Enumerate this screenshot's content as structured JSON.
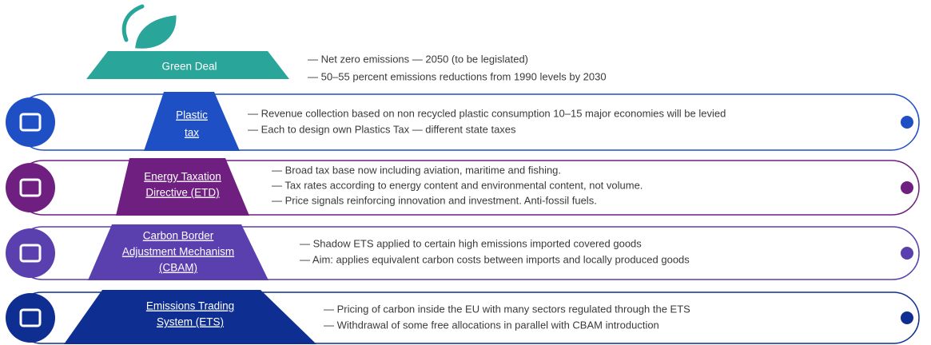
{
  "green_deal": {
    "label": "Green Deal",
    "color": "#2aa59a",
    "points": [
      "— Net zero emissions — 2050 (to be legislated)",
      "— 50–55 percent emissions reductions from 1990 levels by 2030"
    ]
  },
  "levels": [
    {
      "label": [
        "Plastic",
        "tax"
      ],
      "color": "#1e4fc4",
      "points": [
        "— Revenue collection based on non recycled plastic consumption 10–15 major economies will be levied",
        "— Each to design own Plastics Tax — different state taxes"
      ]
    },
    {
      "label": [
        "Energy Taxation",
        "Directive (ETD)"
      ],
      "color": "#6e1f80",
      "points": [
        "— Broad tax base now including aviation, maritime and fishing.",
        "— Tax rates according to energy content and environmental content, not volume.",
        "— Price signals reinforcing innovation and investment. Anti-fossil fuels."
      ]
    },
    {
      "label": [
        "Carbon Border",
        "Adjustment Mechanism",
        "(CBAM)"
      ],
      "color": "#5a3fae",
      "points": [
        "— Shadow ETS applied to certain high emissions imported covered goods",
        "— Aim: applies equivalent carbon costs between imports and locally produced goods"
      ]
    },
    {
      "label": [
        "Emissions Trading",
        "System (ETS)"
      ],
      "color": "#0e2f91",
      "points": [
        "— Pricing of carbon inside the EU with many sectors regulated through the ETS",
        "— Withdrawal of some free allocations in parallel with CBAM introduction"
      ]
    }
  ]
}
